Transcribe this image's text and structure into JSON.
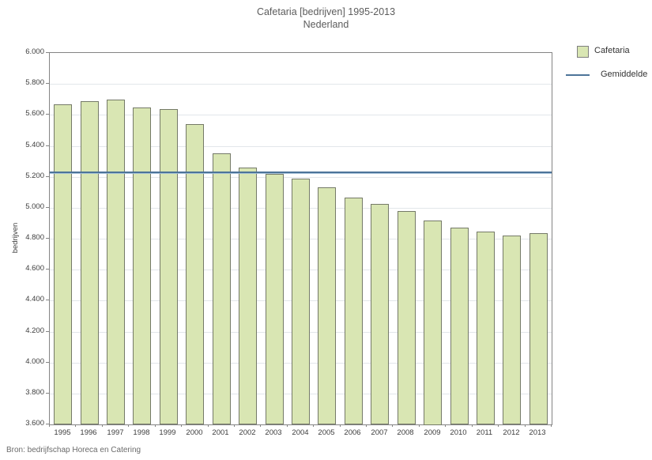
{
  "title": {
    "line1": "Cafetaria [bedrijven] 1995-2013",
    "line2": "Nederland"
  },
  "source": "Bron: bedrijfschap Horeca en Catering",
  "colors": {
    "bar_fill": "#d9e6b3",
    "bar_border": "#757a68",
    "average_line": "#4d7499",
    "gridline": "#e2e6ea",
    "plot_border": "#848484",
    "title_text": "#5c5c5c",
    "axis_text": "#3d3d3d"
  },
  "chart_data": {
    "type": "bar",
    "title": "Cafetaria [bedrijven] 1995-2013",
    "subtitle": "Nederland",
    "xlabel": "",
    "ylabel": "bedrijven",
    "ylim": [
      3600,
      6000
    ],
    "grid": true,
    "legend_position": "top-right-outside",
    "categories": [
      "1995",
      "1996",
      "1997",
      "1998",
      "1999",
      "2000",
      "2001",
      "2002",
      "2003",
      "2004",
      "2005",
      "2006",
      "2007",
      "2008",
      "2009",
      "2010",
      "2011",
      "2012",
      "2013"
    ],
    "yticks": [
      {
        "value": 6000,
        "label": "6.000"
      },
      {
        "value": 5800,
        "label": "5.800"
      },
      {
        "value": 5600,
        "label": "5.600"
      },
      {
        "value": 5400,
        "label": "5.400"
      },
      {
        "value": 5200,
        "label": "5.200"
      },
      {
        "value": 5000,
        "label": "5.000"
      },
      {
        "value": 4800,
        "label": "4.800"
      },
      {
        "value": 4600,
        "label": "4.600"
      },
      {
        "value": 4400,
        "label": "4.400"
      },
      {
        "value": 4200,
        "label": "4.200"
      },
      {
        "value": 4000,
        "label": "4.000"
      },
      {
        "value": 3800,
        "label": "3.800"
      },
      {
        "value": 3600,
        "label": "3.600"
      }
    ],
    "series": [
      {
        "name": "Cafetaria",
        "type": "bar",
        "values": [
          5670,
          5690,
          5700,
          5650,
          5635,
          5540,
          5350,
          5260,
          5220,
          5190,
          5130,
          5065,
          5025,
          4980,
          4920,
          4870,
          4845,
          4820,
          4835
        ]
      },
      {
        "name": "Gemiddelde",
        "type": "line",
        "value": 5231
      }
    ]
  }
}
